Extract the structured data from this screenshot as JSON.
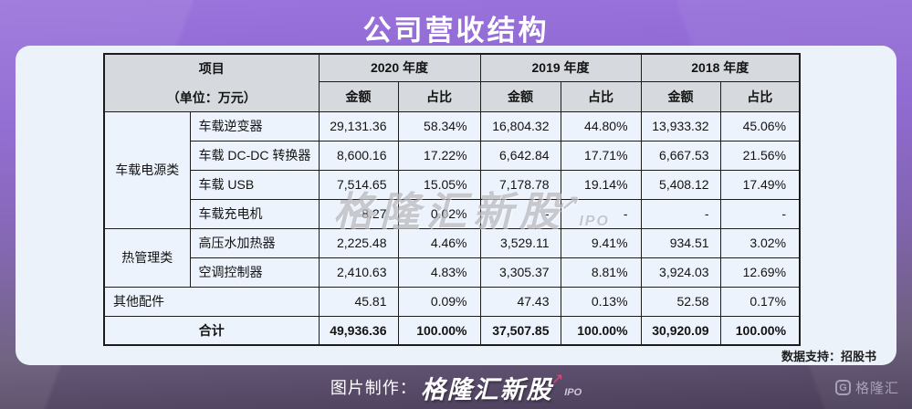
{
  "title": "公司营收结构",
  "watermark": {
    "text": "格隆汇新股",
    "sub": "IPO"
  },
  "notes": {
    "data_source": "数据支持：招股书"
  },
  "footer": {
    "credit_prefix": "图片制作：",
    "brand": "格隆汇新股",
    "brand_sub": "IPO",
    "logo_text": "格隆汇"
  },
  "colors": {
    "background_top": "#9b74dc",
    "background_bottom": "#4a3e59",
    "panel": "#ecf2fa",
    "table_header_bg": "#d6dade",
    "table_body_bg": "#edf3fc",
    "border": "#1c1c1c",
    "title_text": "#ffffff",
    "accent_pink": "#e8437a"
  },
  "chart_data": {
    "type": "table",
    "title": "公司营收结构",
    "header": {
      "project": "项目",
      "unit": "（单位：万元）",
      "years": [
        "2020 年度",
        "2019 年度",
        "2018 年度"
      ],
      "amount": "金额",
      "ratio": "占比"
    },
    "groups": [
      {
        "name": "车载电源类",
        "rows": [
          {
            "item": "车载逆变器",
            "values": [
              "29,131.36",
              "58.34%",
              "16,804.32",
              "44.80%",
              "13,933.32",
              "45.06%"
            ]
          },
          {
            "item": "车载 DC-DC 转换器",
            "values": [
              "8,600.16",
              "17.22%",
              "6,642.84",
              "17.71%",
              "6,667.53",
              "21.56%"
            ]
          },
          {
            "item": "车载 USB",
            "values": [
              "7,514.65",
              "15.05%",
              "7,178.78",
              "19.14%",
              "5,408.12",
              "17.49%"
            ]
          },
          {
            "item": "车载充电机",
            "values": [
              "8.27",
              "0.02%",
              "-",
              "-",
              "-",
              "-"
            ]
          }
        ]
      },
      {
        "name": "热管理类",
        "rows": [
          {
            "item": "高压水加热器",
            "values": [
              "2,225.48",
              "4.46%",
              "3,529.11",
              "9.41%",
              "934.51",
              "3.02%"
            ]
          },
          {
            "item": "空调控制器",
            "values": [
              "2,410.63",
              "4.83%",
              "3,305.37",
              "8.81%",
              "3,924.03",
              "12.69%"
            ]
          }
        ]
      }
    ],
    "other_row": {
      "label": "其他配件",
      "values": [
        "45.81",
        "0.09%",
        "47.43",
        "0.13%",
        "52.58",
        "0.17%"
      ]
    },
    "total_row": {
      "label": "合计",
      "values": [
        "49,936.36",
        "100.00%",
        "37,507.85",
        "100.00%",
        "30,920.09",
        "100.00%"
      ]
    }
  }
}
